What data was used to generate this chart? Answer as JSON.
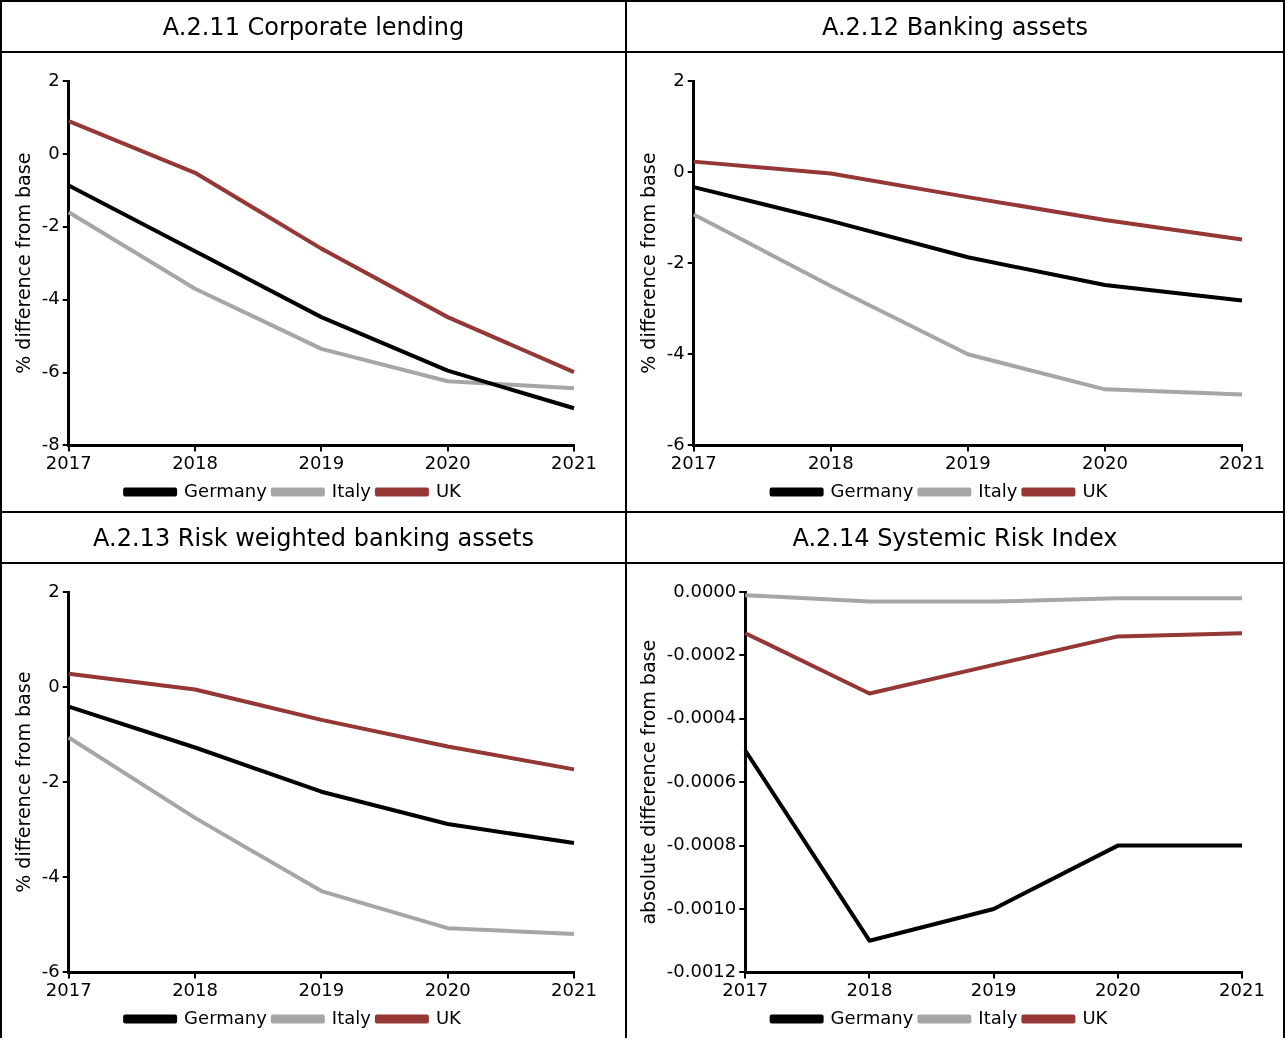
{
  "chart_data": [
    {
      "type": "line",
      "title": "A.2.11 Corporate lending",
      "ylabel": "% difference from base",
      "categories": [
        "2017",
        "2018",
        "2019",
        "2020",
        "2021"
      ],
      "ylim": [
        -8,
        2
      ],
      "yticks": [
        -8,
        -6,
        -4,
        -2,
        0,
        2
      ],
      "legend": "bottom",
      "grid": false,
      "series": [
        {
          "name": "Germany",
          "color": "#000000",
          "values": [
            -0.87,
            -2.67,
            -4.48,
            -5.95,
            -6.98
          ]
        },
        {
          "name": "Italy",
          "color": "#a6a6a6",
          "values": [
            -1.6,
            -3.7,
            -5.35,
            -6.24,
            -6.43
          ]
        },
        {
          "name": "UK",
          "color": "#953735",
          "values": [
            0.9,
            -0.52,
            -2.6,
            -4.48,
            -5.99
          ]
        }
      ]
    },
    {
      "type": "line",
      "title": "A.2.12 Banking assets",
      "ylabel": "% difference from base",
      "categories": [
        "2017",
        "2018",
        "2019",
        "2020",
        "2021"
      ],
      "ylim": [
        -6,
        2
      ],
      "yticks": [
        -6,
        -4,
        -2,
        0,
        2
      ],
      "legend": "bottom",
      "grid": false,
      "series": [
        {
          "name": "Germany",
          "color": "#000000",
          "values": [
            -0.33,
            -1.07,
            -1.87,
            -2.48,
            -2.82
          ]
        },
        {
          "name": "Italy",
          "color": "#a6a6a6",
          "values": [
            -0.93,
            -2.5,
            -4.0,
            -4.77,
            -4.88
          ]
        },
        {
          "name": "UK",
          "color": "#953735",
          "values": [
            0.23,
            -0.03,
            -0.55,
            -1.05,
            -1.48
          ]
        }
      ]
    },
    {
      "type": "line",
      "title": "A.2.13 Risk weighted banking assets",
      "ylabel": "% difference from base",
      "categories": [
        "2017",
        "2018",
        "2019",
        "2020",
        "2021"
      ],
      "ylim": [
        -6,
        2
      ],
      "yticks": [
        -6,
        -4,
        -2,
        0,
        2
      ],
      "legend": "bottom",
      "grid": false,
      "series": [
        {
          "name": "Germany",
          "color": "#000000",
          "values": [
            -0.41,
            -1.27,
            -2.2,
            -2.88,
            -3.28
          ]
        },
        {
          "name": "Italy",
          "color": "#a6a6a6",
          "values": [
            -1.06,
            -2.75,
            -4.29,
            -5.07,
            -5.19
          ]
        },
        {
          "name": "UK",
          "color": "#953735",
          "values": [
            0.28,
            -0.05,
            -0.69,
            -1.25,
            -1.73
          ]
        }
      ]
    },
    {
      "type": "line",
      "title": "A.2.14 Systemic Risk Index",
      "ylabel": "absolute difference from base",
      "categories": [
        "2017",
        "2018",
        "2019",
        "2020",
        "2021"
      ],
      "ylim": [
        -0.0012,
        0
      ],
      "yticks": [
        {
          "value": -0.0012,
          "label": "-0.0012"
        },
        {
          "value": -0.001,
          "label": "-0.0010"
        },
        {
          "value": -0.0008,
          "label": "-0.0008"
        },
        {
          "value": -0.0006,
          "label": "-0.0006"
        },
        {
          "value": -0.0004,
          "label": "-0.0004"
        },
        {
          "value": -0.0002,
          "label": "-0.0002"
        },
        {
          "value": 0,
          "label": "0.0000"
        }
      ],
      "legend": "bottom",
      "grid": false,
      "series": [
        {
          "name": "Germany",
          "color": "#000000",
          "values": [
            -0.0005,
            -0.0011,
            -0.001,
            -0.0008,
            -0.0008
          ]
        },
        {
          "name": "Italy",
          "color": "#a6a6a6",
          "values": [
            -1e-05,
            -3e-05,
            -3e-05,
            -2e-05,
            -2e-05
          ]
        },
        {
          "name": "UK",
          "color": "#953735",
          "values": [
            -0.00013,
            -0.00032,
            -0.00023,
            -0.00014,
            -0.00013
          ]
        }
      ]
    }
  ]
}
